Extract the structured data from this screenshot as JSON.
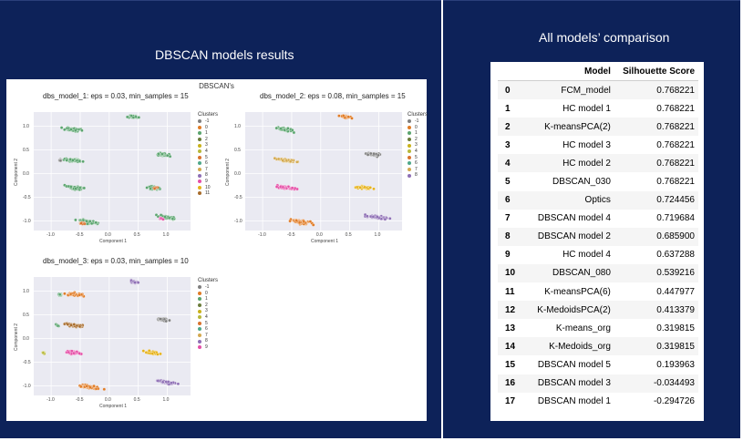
{
  "left_title": "DBSCAN models results",
  "right_title": "All models’ comparison",
  "figure": {
    "suptitle": "DBSCAN's",
    "legend_title": "Clusters",
    "palette": {
      "-1": "#7f7f7f",
      "0": "#e07b25",
      "1": "#5aa46e",
      "2": "#6b7c3a",
      "3": "#c9b21b",
      "4": "#b7b83a",
      "5": "#d9722d",
      "6": "#4ea88a",
      "7": "#d3a94f",
      "8": "#8e6fb5",
      "9": "#e54fa7",
      "10": "#e6b21a",
      "11": "#a86c2c"
    },
    "x_ticks": [
      "-1.0",
      "-0.5",
      "0.0",
      "0.5",
      "1.0"
    ],
    "y_ticks": [
      "1.0",
      "0.5",
      "0.0",
      "-0.5",
      "-1.0"
    ],
    "xlabel": "Component 1",
    "ylabel": "Component 2"
  },
  "chart_data": [
    {
      "type": "scatter",
      "title": "dbs_model_1: eps = 0.03, min_samples = 15",
      "xlabel": "Component 1",
      "ylabel": "Component 2",
      "xlim": [
        -1.3,
        1.4
      ],
      "ylim": [
        -1.2,
        1.3
      ],
      "legend_entries": [
        "-1",
        "0",
        "1",
        "2",
        "3",
        "4",
        "5",
        "6",
        "7",
        "8",
        "9",
        "10",
        "11"
      ],
      "clusters": [
        {
          "label": "1",
          "cx": -0.6,
          "cy": 0.93,
          "sx": 0.26,
          "sy": 0.05,
          "n": 55,
          "color": "1"
        },
        {
          "label": "2",
          "cx": -0.6,
          "cy": 0.28,
          "sx": 0.27,
          "sy": 0.05,
          "n": 50,
          "color": "1"
        },
        {
          "label": "3",
          "cx": -0.6,
          "cy": -0.3,
          "sx": 0.27,
          "sy": 0.05,
          "n": 50,
          "color": "1"
        },
        {
          "label": "4",
          "cx": -0.35,
          "cy": -1.02,
          "sx": 0.3,
          "sy": 0.06,
          "n": 55,
          "color": "1"
        },
        {
          "label": "5",
          "cx": 0.42,
          "cy": 1.2,
          "sx": 0.16,
          "sy": 0.04,
          "n": 35,
          "color": "1"
        },
        {
          "label": "6",
          "cx": 0.92,
          "cy": 0.4,
          "sx": 0.2,
          "sy": 0.05,
          "n": 35,
          "color": "1"
        },
        {
          "label": "7",
          "cx": 0.75,
          "cy": -0.3,
          "sx": 0.2,
          "sy": 0.05,
          "n": 35,
          "color": "1"
        },
        {
          "label": "8",
          "cx": 0.98,
          "cy": -0.92,
          "sx": 0.3,
          "sy": 0.05,
          "n": 50,
          "color": "1"
        },
        {
          "label": "9",
          "cx": -0.85,
          "cy": 0.28,
          "sx": 0.05,
          "sy": 0.03,
          "n": 10,
          "color": "-1"
        },
        {
          "label": "10",
          "cx": 0.9,
          "cy": -0.95,
          "sx": 0.06,
          "sy": 0.03,
          "n": 10,
          "color": "9"
        },
        {
          "label": "11",
          "cx": -0.45,
          "cy": -1.05,
          "sx": 0.1,
          "sy": 0.03,
          "n": 10,
          "color": "5"
        },
        {
          "label": "12",
          "cx": 0.8,
          "cy": -0.3,
          "sx": 0.06,
          "sy": 0.03,
          "n": 8,
          "color": "5"
        }
      ]
    },
    {
      "type": "scatter",
      "title": "dbs_model_2: eps = 0.08, min_samples = 15",
      "xlabel": "Component 1",
      "ylabel": "Component 2",
      "xlim": [
        -1.3,
        1.4
      ],
      "ylim": [
        -1.2,
        1.3
      ],
      "legend_entries": [
        "-1",
        "0",
        "1",
        "2",
        "3",
        "4",
        "5",
        "6",
        "7",
        "8"
      ],
      "clusters": [
        {
          "label": "a",
          "cx": -0.6,
          "cy": 0.93,
          "sx": 0.26,
          "sy": 0.05,
          "n": 55,
          "color": "1"
        },
        {
          "label": "b",
          "cx": -0.6,
          "cy": 0.28,
          "sx": 0.27,
          "sy": 0.05,
          "n": 50,
          "color": "7"
        },
        {
          "label": "c",
          "cx": -0.6,
          "cy": -0.3,
          "sx": 0.27,
          "sy": 0.05,
          "n": 50,
          "color": "9"
        },
        {
          "label": "d",
          "cx": -0.35,
          "cy": -1.02,
          "sx": 0.3,
          "sy": 0.06,
          "n": 55,
          "color": "0"
        },
        {
          "label": "e",
          "cx": 0.42,
          "cy": 1.2,
          "sx": 0.16,
          "sy": 0.04,
          "n": 35,
          "color": "0"
        },
        {
          "label": "f",
          "cx": 0.92,
          "cy": 0.4,
          "sx": 0.2,
          "sy": 0.05,
          "n": 35,
          "color": "-1"
        },
        {
          "label": "g",
          "cx": 0.75,
          "cy": -0.3,
          "sx": 0.2,
          "sy": 0.05,
          "n": 35,
          "color": "10"
        },
        {
          "label": "h",
          "cx": 0.98,
          "cy": -0.92,
          "sx": 0.3,
          "sy": 0.05,
          "n": 50,
          "color": "8"
        }
      ]
    },
    {
      "type": "scatter",
      "title": "dbs_model_3: eps = 0.03, min_samples = 10",
      "xlabel": "Component 1",
      "ylabel": "Component 2",
      "xlim": [
        -1.3,
        1.4
      ],
      "ylim": [
        -1.2,
        1.3
      ],
      "legend_entries": [
        "-1",
        "0",
        "1",
        "2",
        "3",
        "4",
        "5",
        "6",
        "7",
        "8",
        "9"
      ],
      "clusters": [
        {
          "label": "a",
          "cx": -0.6,
          "cy": 0.93,
          "sx": 0.26,
          "sy": 0.05,
          "n": 55,
          "color": "0"
        },
        {
          "label": "b",
          "cx": -0.6,
          "cy": 0.28,
          "sx": 0.27,
          "sy": 0.05,
          "n": 50,
          "color": "11"
        },
        {
          "label": "c",
          "cx": -0.6,
          "cy": -0.3,
          "sx": 0.27,
          "sy": 0.05,
          "n": 50,
          "color": "9"
        },
        {
          "label": "d",
          "cx": -0.35,
          "cy": -1.02,
          "sx": 0.3,
          "sy": 0.06,
          "n": 55,
          "color": "0"
        },
        {
          "label": "e",
          "cx": 0.42,
          "cy": 1.2,
          "sx": 0.16,
          "sy": 0.04,
          "n": 35,
          "color": "8"
        },
        {
          "label": "f",
          "cx": 0.92,
          "cy": 0.4,
          "sx": 0.2,
          "sy": 0.05,
          "n": 35,
          "color": "-1"
        },
        {
          "label": "g",
          "cx": 0.75,
          "cy": -0.3,
          "sx": 0.2,
          "sy": 0.05,
          "n": 35,
          "color": "10"
        },
        {
          "label": "h",
          "cx": 0.98,
          "cy": -0.92,
          "sx": 0.3,
          "sy": 0.05,
          "n": 50,
          "color": "8"
        },
        {
          "label": "i",
          "cx": -1.12,
          "cy": -0.3,
          "sx": 0.04,
          "sy": 0.03,
          "n": 10,
          "color": "4"
        },
        {
          "label": "j",
          "cx": -0.9,
          "cy": 0.28,
          "sx": 0.06,
          "sy": 0.03,
          "n": 10,
          "color": "1"
        },
        {
          "label": "k",
          "cx": -0.85,
          "cy": 0.93,
          "sx": 0.06,
          "sy": 0.03,
          "n": 10,
          "color": "1"
        }
      ]
    }
  ],
  "table": {
    "headers": [
      "",
      "Model",
      "Silhouette Score"
    ],
    "rows": [
      [
        "0",
        "FCM_model",
        "0.768221"
      ],
      [
        "1",
        "HC model 1",
        "0.768221"
      ],
      [
        "2",
        "K-meansPCA(2)",
        "0.768221"
      ],
      [
        "3",
        "HC model 3",
        "0.768221"
      ],
      [
        "4",
        "HC model 2",
        "0.768221"
      ],
      [
        "5",
        "DBSCAN_030",
        "0.768221"
      ],
      [
        "6",
        "Optics",
        "0.724456"
      ],
      [
        "7",
        "DBSCAN model 4",
        "0.719684"
      ],
      [
        "8",
        "DBSCAN model 2",
        "0.685900"
      ],
      [
        "9",
        "HC model 4",
        "0.637288"
      ],
      [
        "10",
        "DBSCAN_080",
        "0.539216"
      ],
      [
        "11",
        "K-meansPCA(6)",
        "0.447977"
      ],
      [
        "12",
        "K-MedoidsPCA(2)",
        "0.413379"
      ],
      [
        "13",
        "K-means_org",
        "0.319815"
      ],
      [
        "14",
        "K-Medoids_org",
        "0.319815"
      ],
      [
        "15",
        "DBSCAN model 5",
        "0.193963"
      ],
      [
        "16",
        "DBSCAN model 3",
        "-0.034493"
      ],
      [
        "17",
        "DBSCAN model 1",
        "-0.294726"
      ]
    ]
  }
}
